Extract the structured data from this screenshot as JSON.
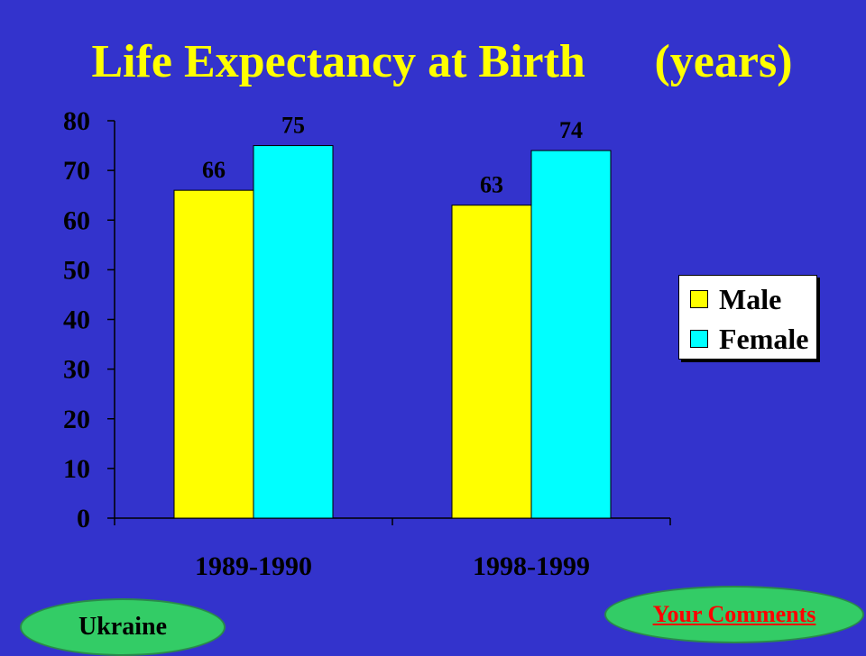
{
  "title": "Life Expectancy at Birth\t(years)",
  "legend": {
    "items": [
      "Male",
      "Female"
    ]
  },
  "footer": {
    "left_label": "Ukraine",
    "right_link": "Your Comments"
  },
  "colors": {
    "background": "#3333cc",
    "male": "#ffff00",
    "female": "#00ffff",
    "title": "#ffff00"
  },
  "chart_data": {
    "type": "bar",
    "title": "Life Expectancy at Birth\t(years)",
    "categories": [
      "1989-1990",
      "1998-1999"
    ],
    "series": [
      {
        "name": "Male",
        "values": [
          66,
          63
        ],
        "color": "#ffff00"
      },
      {
        "name": "Female",
        "values": [
          75,
          74
        ],
        "color": "#00ffff"
      }
    ],
    "ylim": [
      0,
      80
    ],
    "yticks": [
      0,
      10,
      20,
      30,
      40,
      50,
      60,
      70,
      80
    ],
    "data_labels": true,
    "grid": false,
    "legend_position": "right"
  }
}
